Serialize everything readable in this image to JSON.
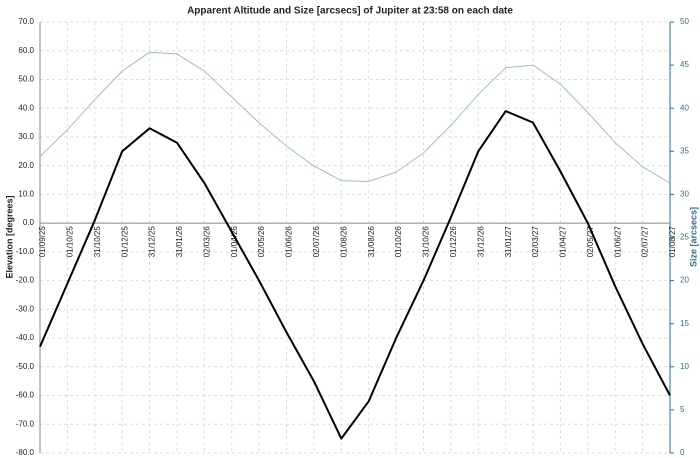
{
  "chart_data": {
    "type": "line",
    "title": "Apparent Altitude and Size [arcsecs] of Jupiter at 23:58 on each date",
    "y_label": "Elevation [degrees]",
    "y2_label": "Size [arcsecs]",
    "categories": [
      "01/09/25",
      "01/10/25",
      "31/10/25",
      "01/12/25",
      "31/12/25",
      "31/01/26",
      "02/03/26",
      "01/04/26",
      "02/05/26",
      "01/06/26",
      "02/07/26",
      "01/08/26",
      "31/08/26",
      "01/10/26",
      "31/10/26",
      "01/12/26",
      "31/12/26",
      "31/01/27",
      "02/03/27",
      "01/04/27",
      "02/05/27",
      "01/06/27",
      "02/07/27",
      "01/08/27"
    ],
    "series": [
      {
        "color": "#000000",
        "values": [
          -43,
          -21,
          1,
          25,
          33,
          28,
          14,
          -3,
          -20,
          -38,
          -55,
          -75,
          -62,
          -40,
          -20,
          2,
          25,
          39,
          35,
          18,
          0,
          -22,
          -42,
          -60
        ]
      },
      {
        "color": "#9fbfbf",
        "axis": "y2",
        "values": [
          34.4,
          37.5,
          41,
          44.3,
          46.5,
          46.3,
          44.3,
          41.3,
          38.3,
          35.6,
          33.3,
          31.6,
          31.5,
          32.6,
          34.8,
          38,
          41.6,
          44.7,
          45,
          42.8,
          39.5,
          36,
          33.2,
          31.3
        ]
      }
    ],
    "ylim": [
      -80,
      70
    ],
    "yticks": [
      {
        "value": -80,
        "label": "-80.0"
      },
      {
        "value": -70,
        "label": "-70.0"
      },
      {
        "value": -60,
        "label": "-60.0"
      },
      {
        "value": -50,
        "label": "-50.0"
      },
      {
        "value": -40,
        "label": "-40.0"
      },
      {
        "value": -30,
        "label": "-30.0"
      },
      {
        "value": -20,
        "label": "-20.0"
      },
      {
        "value": -10,
        "label": "-10.0"
      },
      {
        "value": 0,
        "label": "0.0"
      },
      {
        "value": 10,
        "label": "10.0"
      },
      {
        "value": 20,
        "label": "20.0"
      },
      {
        "value": 30,
        "label": "30.0"
      },
      {
        "value": 40,
        "label": "40.0"
      },
      {
        "value": 50,
        "label": "50.0"
      },
      {
        "value": 60,
        "label": "60.0"
      },
      {
        "value": 70,
        "label": "70.0"
      }
    ],
    "y2lim": [
      0,
      50
    ],
    "y2ticks": [
      0,
      5,
      10,
      15,
      20,
      25,
      30,
      35,
      40,
      45,
      50
    ],
    "y2_color": "#2e6e8e",
    "grid": true
  }
}
